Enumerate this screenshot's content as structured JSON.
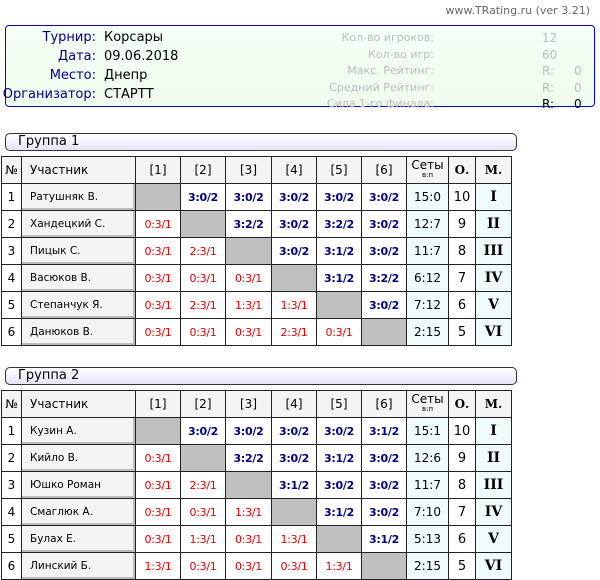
{
  "version": "www.TRating.ru (ver 3.21)",
  "info": {
    "labels": [
      "Турнир:",
      "Дата:",
      "Место:",
      "Организатор:"
    ],
    "values": [
      "Корсары",
      "09.06.2018",
      "Днепр",
      "СТАРТТ"
    ],
    "stats": [
      {
        "label": "Кол-во игроков:",
        "value": "12",
        "value2": ""
      },
      {
        "label": "Кол-во игр:",
        "value": "60",
        "value2": ""
      },
      {
        "label": "Макс. Рейтинг:",
        "value": "R:",
        "value2": "0"
      },
      {
        "label": "Средний Рейтинг:",
        "value": "R:",
        "value2": "0"
      },
      {
        "label": "Сила 1-го финала:",
        "value": "R:",
        "value2": "0"
      }
    ]
  },
  "headers": {
    "num": "№",
    "name": "Участник",
    "cols": [
      "[1]",
      "[2]",
      "[3]",
      "[4]",
      "[5]",
      "[6]"
    ],
    "sets": "Сеты",
    "sets_sub": "в:п",
    "points": "О.",
    "place": "М."
  },
  "groups": [
    {
      "title": "Группа 1",
      "rows": [
        {
          "n": "1",
          "name": "Ратушняк В.",
          "res": [
            "",
            "3:0/2",
            "3:0/2",
            "3:0/2",
            "3:0/2",
            "3:0/2"
          ],
          "sets": "15:0",
          "pts": "10",
          "place": "I"
        },
        {
          "n": "2",
          "name": "Хандецкий С.",
          "res": [
            "0:3/1",
            "",
            "3:2/2",
            "3:0/2",
            "3:2/2",
            "3:0/2"
          ],
          "sets": "12:7",
          "pts": "9",
          "place": "II"
        },
        {
          "n": "3",
          "name": "Пицык С.",
          "res": [
            "0:3/1",
            "2:3/1",
            "",
            "3:0/2",
            "3:1/2",
            "3:0/2"
          ],
          "sets": "11:7",
          "pts": "8",
          "place": "III"
        },
        {
          "n": "4",
          "name": "Васюков В.",
          "res": [
            "0:3/1",
            "0:3/1",
            "0:3/1",
            "",
            "3:1/2",
            "3:2/2"
          ],
          "sets": "6:12",
          "pts": "7",
          "place": "IV"
        },
        {
          "n": "5",
          "name": "Степанчук Я.",
          "res": [
            "0:3/1",
            "2:3/1",
            "1:3/1",
            "1:3/1",
            "",
            "3:0/2"
          ],
          "sets": "7:12",
          "pts": "6",
          "place": "V"
        },
        {
          "n": "6",
          "name": "Данюков В.",
          "res": [
            "0:3/1",
            "0:3/1",
            "0:3/1",
            "2:3/1",
            "0:3/1",
            ""
          ],
          "sets": "2:15",
          "pts": "5",
          "place": "VI"
        }
      ]
    },
    {
      "title": "Группа 2",
      "rows": [
        {
          "n": "1",
          "name": "Кузин А.",
          "res": [
            "",
            "3:0/2",
            "3:0/2",
            "3:0/2",
            "3:0/2",
            "3:1/2"
          ],
          "sets": "15:1",
          "pts": "10",
          "place": "I"
        },
        {
          "n": "2",
          "name": "Кийло В.",
          "res": [
            "0:3/1",
            "",
            "3:2/2",
            "3:0/2",
            "3:1/2",
            "3:0/2"
          ],
          "sets": "12:6",
          "pts": "9",
          "place": "II"
        },
        {
          "n": "3",
          "name": "Юшко Роман",
          "res": [
            "0:3/1",
            "2:3/1",
            "",
            "3:1/2",
            "3:0/2",
            "3:0/2"
          ],
          "sets": "11:7",
          "pts": "8",
          "place": "III"
        },
        {
          "n": "4",
          "name": "Смаглюк А.",
          "res": [
            "0:3/1",
            "0:3/1",
            "1:3/1",
            "",
            "3:1/2",
            "3:0/2"
          ],
          "sets": "7:10",
          "pts": "7",
          "place": "IV"
        },
        {
          "n": "5",
          "name": "Булах Е.",
          "res": [
            "0:3/1",
            "1:3/1",
            "0:3/1",
            "1:3/1",
            "",
            "3:1/2"
          ],
          "sets": "5:13",
          "pts": "6",
          "place": "V"
        },
        {
          "n": "6",
          "name": "Линский Б.",
          "res": [
            "1:3/1",
            "0:3/1",
            "0:3/1",
            "0:3/1",
            "1:3/1",
            ""
          ],
          "sets": "2:15",
          "pts": "5",
          "place": "VI"
        }
      ]
    }
  ],
  "colors": {
    "win": "#000080",
    "loss": "#e00000",
    "diag": "#c0c0c0",
    "info_border": "#0000e0"
  }
}
